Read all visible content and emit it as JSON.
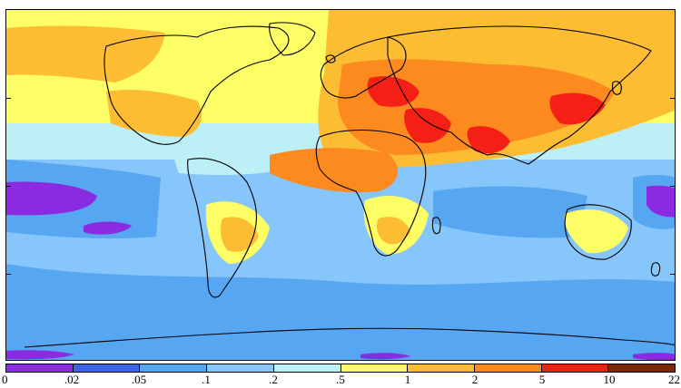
{
  "map": {
    "projection": "equirectangular world",
    "field": "colour-filled contour map with continent outlines",
    "colors": {
      "ocean_high_lat": "#57a6f2",
      "ocean_mid": "#86c6fb",
      "band_light": "#bdf0f6",
      "yellow": "#fdfd66",
      "orange_light": "#fdbd33",
      "orange": "#fd8a1e",
      "red": "#f52015",
      "purple": "#8a2be2",
      "coast": "#000000"
    }
  },
  "legend": {
    "ticks": [
      "0",
      ".02",
      ".05",
      ".1",
      ".2",
      ".5",
      "1",
      "2",
      "5",
      "10",
      "22"
    ],
    "colors": [
      "#8e2be8",
      "#3f64e6",
      "#57a6f2",
      "#86c6fb",
      "#bdf0f6",
      "#fdfd66",
      "#fdbd33",
      "#fd8a1e",
      "#f52015",
      "#7a2a0a"
    ]
  }
}
